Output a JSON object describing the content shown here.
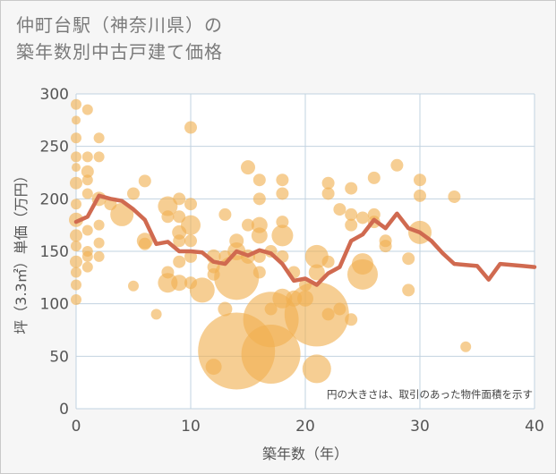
{
  "title": {
    "line1": "仲町台駅（神奈川県）の",
    "line2": "築年数別中古戸建て価格"
  },
  "colors": {
    "background": "#f6f6f6",
    "plot_background": "#ffffff",
    "grid": "#c2d3e0",
    "bubble": "#f0b050",
    "line": "#d06a50"
  },
  "chart_data": {
    "type": "scatter",
    "title": "仲町台駅（神奈川県）の築年数別中古戸建て価格",
    "xlabel": "築年数（年）",
    "ylabel": "坪（3.3㎡）単価（万円）",
    "xlim": [
      0,
      40
    ],
    "ylim": [
      0,
      300
    ],
    "x_ticks": [
      0,
      10,
      20,
      30,
      40
    ],
    "y_ticks": [
      0,
      50,
      100,
      150,
      200,
      250,
      300
    ],
    "grid": true,
    "note": "円の大きさは、取引のあった物件面積を示す",
    "bubbles": [
      {
        "x": 0,
        "y": 290,
        "r": 6
      },
      {
        "x": 0,
        "y": 275,
        "r": 5
      },
      {
        "x": 0,
        "y": 258,
        "r": 6
      },
      {
        "x": 0,
        "y": 240,
        "r": 6
      },
      {
        "x": 0,
        "y": 230,
        "r": 5
      },
      {
        "x": 0,
        "y": 215,
        "r": 7
      },
      {
        "x": 0,
        "y": 195,
        "r": 6
      },
      {
        "x": 0,
        "y": 180,
        "r": 8
      },
      {
        "x": 0,
        "y": 165,
        "r": 7
      },
      {
        "x": 0,
        "y": 155,
        "r": 6
      },
      {
        "x": 0,
        "y": 140,
        "r": 7
      },
      {
        "x": 0,
        "y": 130,
        "r": 6
      },
      {
        "x": 0,
        "y": 118,
        "r": 6
      },
      {
        "x": 0,
        "y": 104,
        "r": 6
      },
      {
        "x": 1,
        "y": 285,
        "r": 6
      },
      {
        "x": 1,
        "y": 240,
        "r": 6
      },
      {
        "x": 1,
        "y": 226,
        "r": 7
      },
      {
        "x": 1,
        "y": 218,
        "r": 6
      },
      {
        "x": 1,
        "y": 205,
        "r": 6
      },
      {
        "x": 1,
        "y": 170,
        "r": 6
      },
      {
        "x": 1,
        "y": 150,
        "r": 6
      },
      {
        "x": 1,
        "y": 145,
        "r": 6
      },
      {
        "x": 1,
        "y": 135,
        "r": 6
      },
      {
        "x": 2,
        "y": 258,
        "r": 6
      },
      {
        "x": 2,
        "y": 240,
        "r": 6
      },
      {
        "x": 2,
        "y": 200,
        "r": 8
      },
      {
        "x": 2,
        "y": 175,
        "r": 6
      },
      {
        "x": 2,
        "y": 158,
        "r": 6
      },
      {
        "x": 2,
        "y": 145,
        "r": 6
      },
      {
        "x": 3,
        "y": 195,
        "r": 7
      },
      {
        "x": 4,
        "y": 185,
        "r": 13
      },
      {
        "x": 5,
        "y": 205,
        "r": 7
      },
      {
        "x": 5,
        "y": 117,
        "r": 6
      },
      {
        "x": 6,
        "y": 217,
        "r": 7
      },
      {
        "x": 6,
        "y": 160,
        "r": 9
      },
      {
        "x": 6,
        "y": 157,
        "r": 7
      },
      {
        "x": 7,
        "y": 90,
        "r": 6
      },
      {
        "x": 8,
        "y": 193,
        "r": 11
      },
      {
        "x": 8,
        "y": 183,
        "r": 7
      },
      {
        "x": 8,
        "y": 130,
        "r": 7
      },
      {
        "x": 8,
        "y": 120,
        "r": 11
      },
      {
        "x": 9,
        "y": 200,
        "r": 7
      },
      {
        "x": 9,
        "y": 183,
        "r": 7
      },
      {
        "x": 9,
        "y": 168,
        "r": 8
      },
      {
        "x": 9,
        "y": 160,
        "r": 7
      },
      {
        "x": 9,
        "y": 140,
        "r": 7
      },
      {
        "x": 9,
        "y": 120,
        "r": 9
      },
      {
        "x": 10,
        "y": 268,
        "r": 7
      },
      {
        "x": 10,
        "y": 195,
        "r": 7
      },
      {
        "x": 10,
        "y": 175,
        "r": 11
      },
      {
        "x": 10,
        "y": 160,
        "r": 7
      },
      {
        "x": 10,
        "y": 145,
        "r": 7
      },
      {
        "x": 10,
        "y": 120,
        "r": 7
      },
      {
        "x": 11,
        "y": 113,
        "r": 14
      },
      {
        "x": 12,
        "y": 145,
        "r": 8
      },
      {
        "x": 12,
        "y": 135,
        "r": 7
      },
      {
        "x": 12,
        "y": 128,
        "r": 7
      },
      {
        "x": 12,
        "y": 40,
        "r": 9
      },
      {
        "x": 13,
        "y": 185,
        "r": 7
      },
      {
        "x": 13,
        "y": 145,
        "r": 7
      },
      {
        "x": 13,
        "y": 95,
        "r": 8
      },
      {
        "x": 14,
        "y": 160,
        "r": 8
      },
      {
        "x": 14,
        "y": 150,
        "r": 10
      },
      {
        "x": 14,
        "y": 125,
        "r": 25
      },
      {
        "x": 14,
        "y": 55,
        "r": 43
      },
      {
        "x": 15,
        "y": 230,
        "r": 8
      },
      {
        "x": 15,
        "y": 175,
        "r": 7
      },
      {
        "x": 15,
        "y": 145,
        "r": 8
      },
      {
        "x": 16,
        "y": 218,
        "r": 7
      },
      {
        "x": 16,
        "y": 200,
        "r": 7
      },
      {
        "x": 16,
        "y": 175,
        "r": 9
      },
      {
        "x": 16,
        "y": 165,
        "r": 9
      },
      {
        "x": 16,
        "y": 145,
        "r": 7
      },
      {
        "x": 16,
        "y": 130,
        "r": 7
      },
      {
        "x": 17,
        "y": 150,
        "r": 7
      },
      {
        "x": 17,
        "y": 95,
        "r": 7
      },
      {
        "x": 17,
        "y": 85,
        "r": 31
      },
      {
        "x": 17,
        "y": 52,
        "r": 33
      },
      {
        "x": 18,
        "y": 218,
        "r": 7
      },
      {
        "x": 18,
        "y": 205,
        "r": 7
      },
      {
        "x": 18,
        "y": 178,
        "r": 7
      },
      {
        "x": 18,
        "y": 165,
        "r": 12
      },
      {
        "x": 18,
        "y": 145,
        "r": 7
      },
      {
        "x": 18,
        "y": 105,
        "r": 11
      },
      {
        "x": 19,
        "y": 130,
        "r": 7
      },
      {
        "x": 19,
        "y": 105,
        "r": 9
      },
      {
        "x": 20,
        "y": 118,
        "r": 7
      },
      {
        "x": 20,
        "y": 105,
        "r": 9
      },
      {
        "x": 21,
        "y": 145,
        "r": 13
      },
      {
        "x": 21,
        "y": 130,
        "r": 9
      },
      {
        "x": 21,
        "y": 90,
        "r": 36
      },
      {
        "x": 21,
        "y": 38,
        "r": 16
      },
      {
        "x": 22,
        "y": 215,
        "r": 7
      },
      {
        "x": 22,
        "y": 205,
        "r": 7
      },
      {
        "x": 22,
        "y": 140,
        "r": 7
      },
      {
        "x": 22,
        "y": 90,
        "r": 7
      },
      {
        "x": 23,
        "y": 190,
        "r": 7
      },
      {
        "x": 23,
        "y": 95,
        "r": 7
      },
      {
        "x": 24,
        "y": 210,
        "r": 7
      },
      {
        "x": 24,
        "y": 185,
        "r": 7
      },
      {
        "x": 24,
        "y": 175,
        "r": 7
      },
      {
        "x": 24,
        "y": 85,
        "r": 7
      },
      {
        "x": 25,
        "y": 182,
        "r": 7
      },
      {
        "x": 25,
        "y": 138,
        "r": 12
      },
      {
        "x": 25,
        "y": 128,
        "r": 17
      },
      {
        "x": 26,
        "y": 220,
        "r": 7
      },
      {
        "x": 26,
        "y": 185,
        "r": 7
      },
      {
        "x": 26,
        "y": 178,
        "r": 7
      },
      {
        "x": 27,
        "y": 160,
        "r": 7
      },
      {
        "x": 27,
        "y": 155,
        "r": 7
      },
      {
        "x": 28,
        "y": 232,
        "r": 7
      },
      {
        "x": 29,
        "y": 143,
        "r": 7
      },
      {
        "x": 29,
        "y": 113,
        "r": 7
      },
      {
        "x": 30,
        "y": 218,
        "r": 7
      },
      {
        "x": 30,
        "y": 203,
        "r": 7
      },
      {
        "x": 30,
        "y": 168,
        "r": 13
      },
      {
        "x": 33,
        "y": 202,
        "r": 7
      },
      {
        "x": 34,
        "y": 59,
        "r": 6
      }
    ],
    "series": [
      {
        "type": "line",
        "x": [
          0,
          1,
          2,
          3,
          4,
          5,
          6,
          7,
          8,
          9,
          10,
          11,
          12,
          13,
          14,
          15,
          16,
          17,
          18,
          19,
          20,
          21,
          22,
          23,
          24,
          25,
          26,
          27,
          28,
          29,
          30,
          31,
          32,
          33,
          34,
          35,
          36,
          37,
          38,
          39,
          40
        ],
        "y": [
          178,
          183,
          203,
          200,
          198,
          190,
          180,
          157,
          159,
          150,
          150,
          149,
          140,
          138,
          150,
          146,
          151,
          148,
          138,
          122,
          124,
          118,
          129,
          135,
          160,
          166,
          180,
          172,
          186,
          172,
          168,
          160,
          148,
          138,
          137,
          136,
          123,
          138,
          137,
          136,
          135
        ]
      }
    ]
  }
}
